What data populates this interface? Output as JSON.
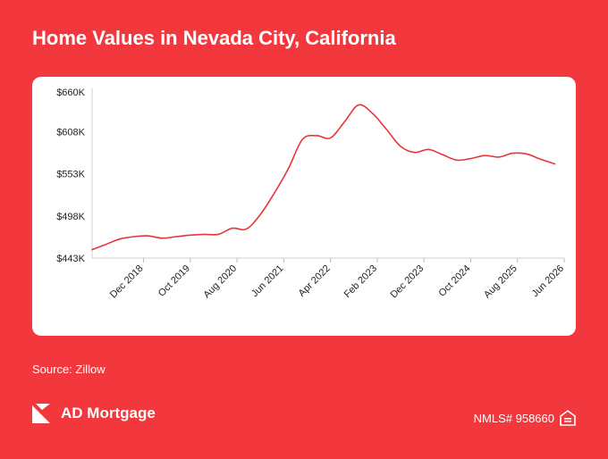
{
  "title": "Home Values in Nevada City, California",
  "source": "Source: Zillow",
  "brand": {
    "name": "AD Mortgage"
  },
  "nmls": "NMLS# 958660",
  "colors": {
    "background": "#F2383D",
    "line": "#E8353A",
    "card": "#FFFFFF"
  },
  "icons": {
    "logo": "ad-mortgage-logo-icon",
    "housing": "equal-housing-icon"
  },
  "chart_data": {
    "type": "line",
    "title": "Home Values in Nevada City, California",
    "xlabel": "",
    "ylabel": "",
    "ylim": [
      443000,
      660000
    ],
    "xlim": [
      "2018-01",
      "2026-06"
    ],
    "y_ticks": [
      443000,
      498000,
      553000,
      608000,
      660000
    ],
    "y_tick_labels": [
      "$443K",
      "$498K",
      "$553K",
      "$608K",
      "$660K"
    ],
    "x_ticks": [
      "2018-12",
      "2019-10",
      "2020-08",
      "2021-06",
      "2022-04",
      "2023-02",
      "2023-12",
      "2024-10",
      "2025-08",
      "2026-06"
    ],
    "x_tick_labels": [
      "Dec 2018",
      "Oct 2019",
      "Aug 2020",
      "Jun 2021",
      "Apr 2022",
      "Feb 2023",
      "Dec 2023",
      "Oct 2024",
      "Aug 2025",
      "Jun 2026"
    ],
    "grid": false,
    "legend": "none",
    "series": [
      {
        "x": [
          "2018-01",
          "2018-04",
          "2018-07",
          "2018-10",
          "2019-01",
          "2019-04",
          "2019-07",
          "2019-10",
          "2020-01",
          "2020-04",
          "2020-07",
          "2020-10",
          "2021-01",
          "2021-04",
          "2021-07",
          "2021-10",
          "2022-01",
          "2022-04",
          "2022-07",
          "2022-10",
          "2023-01",
          "2023-04",
          "2023-07",
          "2023-10",
          "2024-01",
          "2024-04",
          "2024-07",
          "2024-10",
          "2025-01",
          "2025-04",
          "2025-07",
          "2025-10",
          "2026-01",
          "2026-04"
        ],
        "values": [
          454000,
          461000,
          468000,
          471000,
          472000,
          469000,
          471000,
          473000,
          474000,
          474000,
          482000,
          481000,
          500000,
          528000,
          560000,
          598000,
          603000,
          600000,
          621000,
          643000,
          632000,
          611000,
          589000,
          581000,
          585000,
          578000,
          571000,
          573000,
          577000,
          575000,
          580000,
          579000,
          572000,
          566000
        ]
      }
    ]
  }
}
